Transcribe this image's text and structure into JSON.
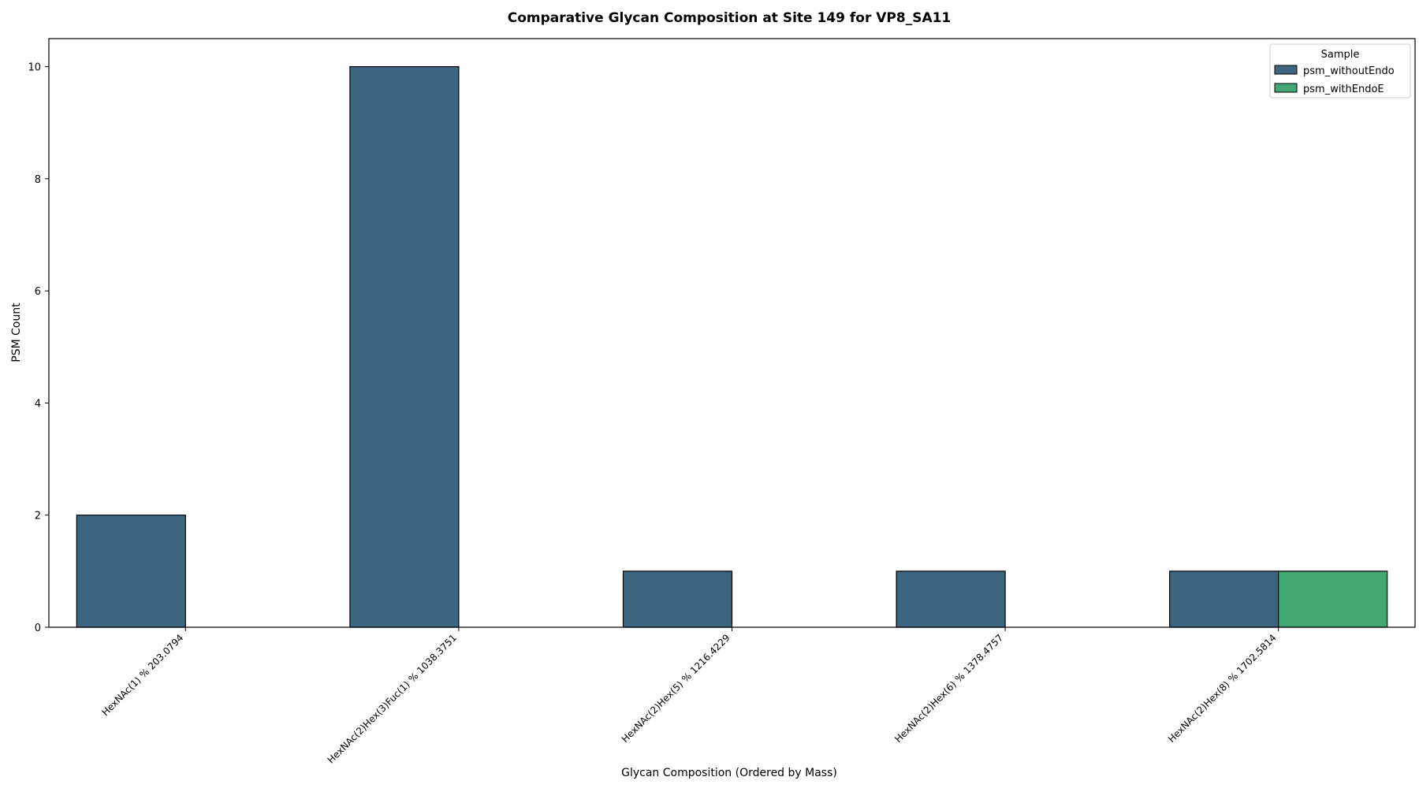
{
  "chart_data": {
    "type": "bar",
    "title": "Comparative Glycan Composition at Site 149 for VP8_SA11",
    "xlabel": "Glycan Composition (Ordered by Mass)",
    "ylabel": "PSM Count",
    "categories": [
      "HexNAc(1) % 203.0794",
      "HexNAc(2)Hex(3)Fuc(1) % 1038.3751",
      "HexNAc(2)Hex(5) % 1216.4229",
      "HexNAc(2)Hex(6) % 1378.4757",
      "HexNAc(2)Hex(8) % 1702.5814"
    ],
    "series": [
      {
        "name": "psm_withoutEndo",
        "values": [
          2,
          10,
          1,
          1,
          1
        ],
        "color": "#3e6580"
      },
      {
        "name": "psm_withEndoE",
        "values": [
          0,
          0,
          0,
          0,
          1
        ],
        "color": "#44a776"
      }
    ],
    "ylim": [
      0,
      10.5
    ],
    "yticks": [
      "0",
      "2",
      "4",
      "6",
      "8",
      "10"
    ],
    "legend": {
      "title": "Sample",
      "placement": "top-right"
    },
    "grid": false
  }
}
